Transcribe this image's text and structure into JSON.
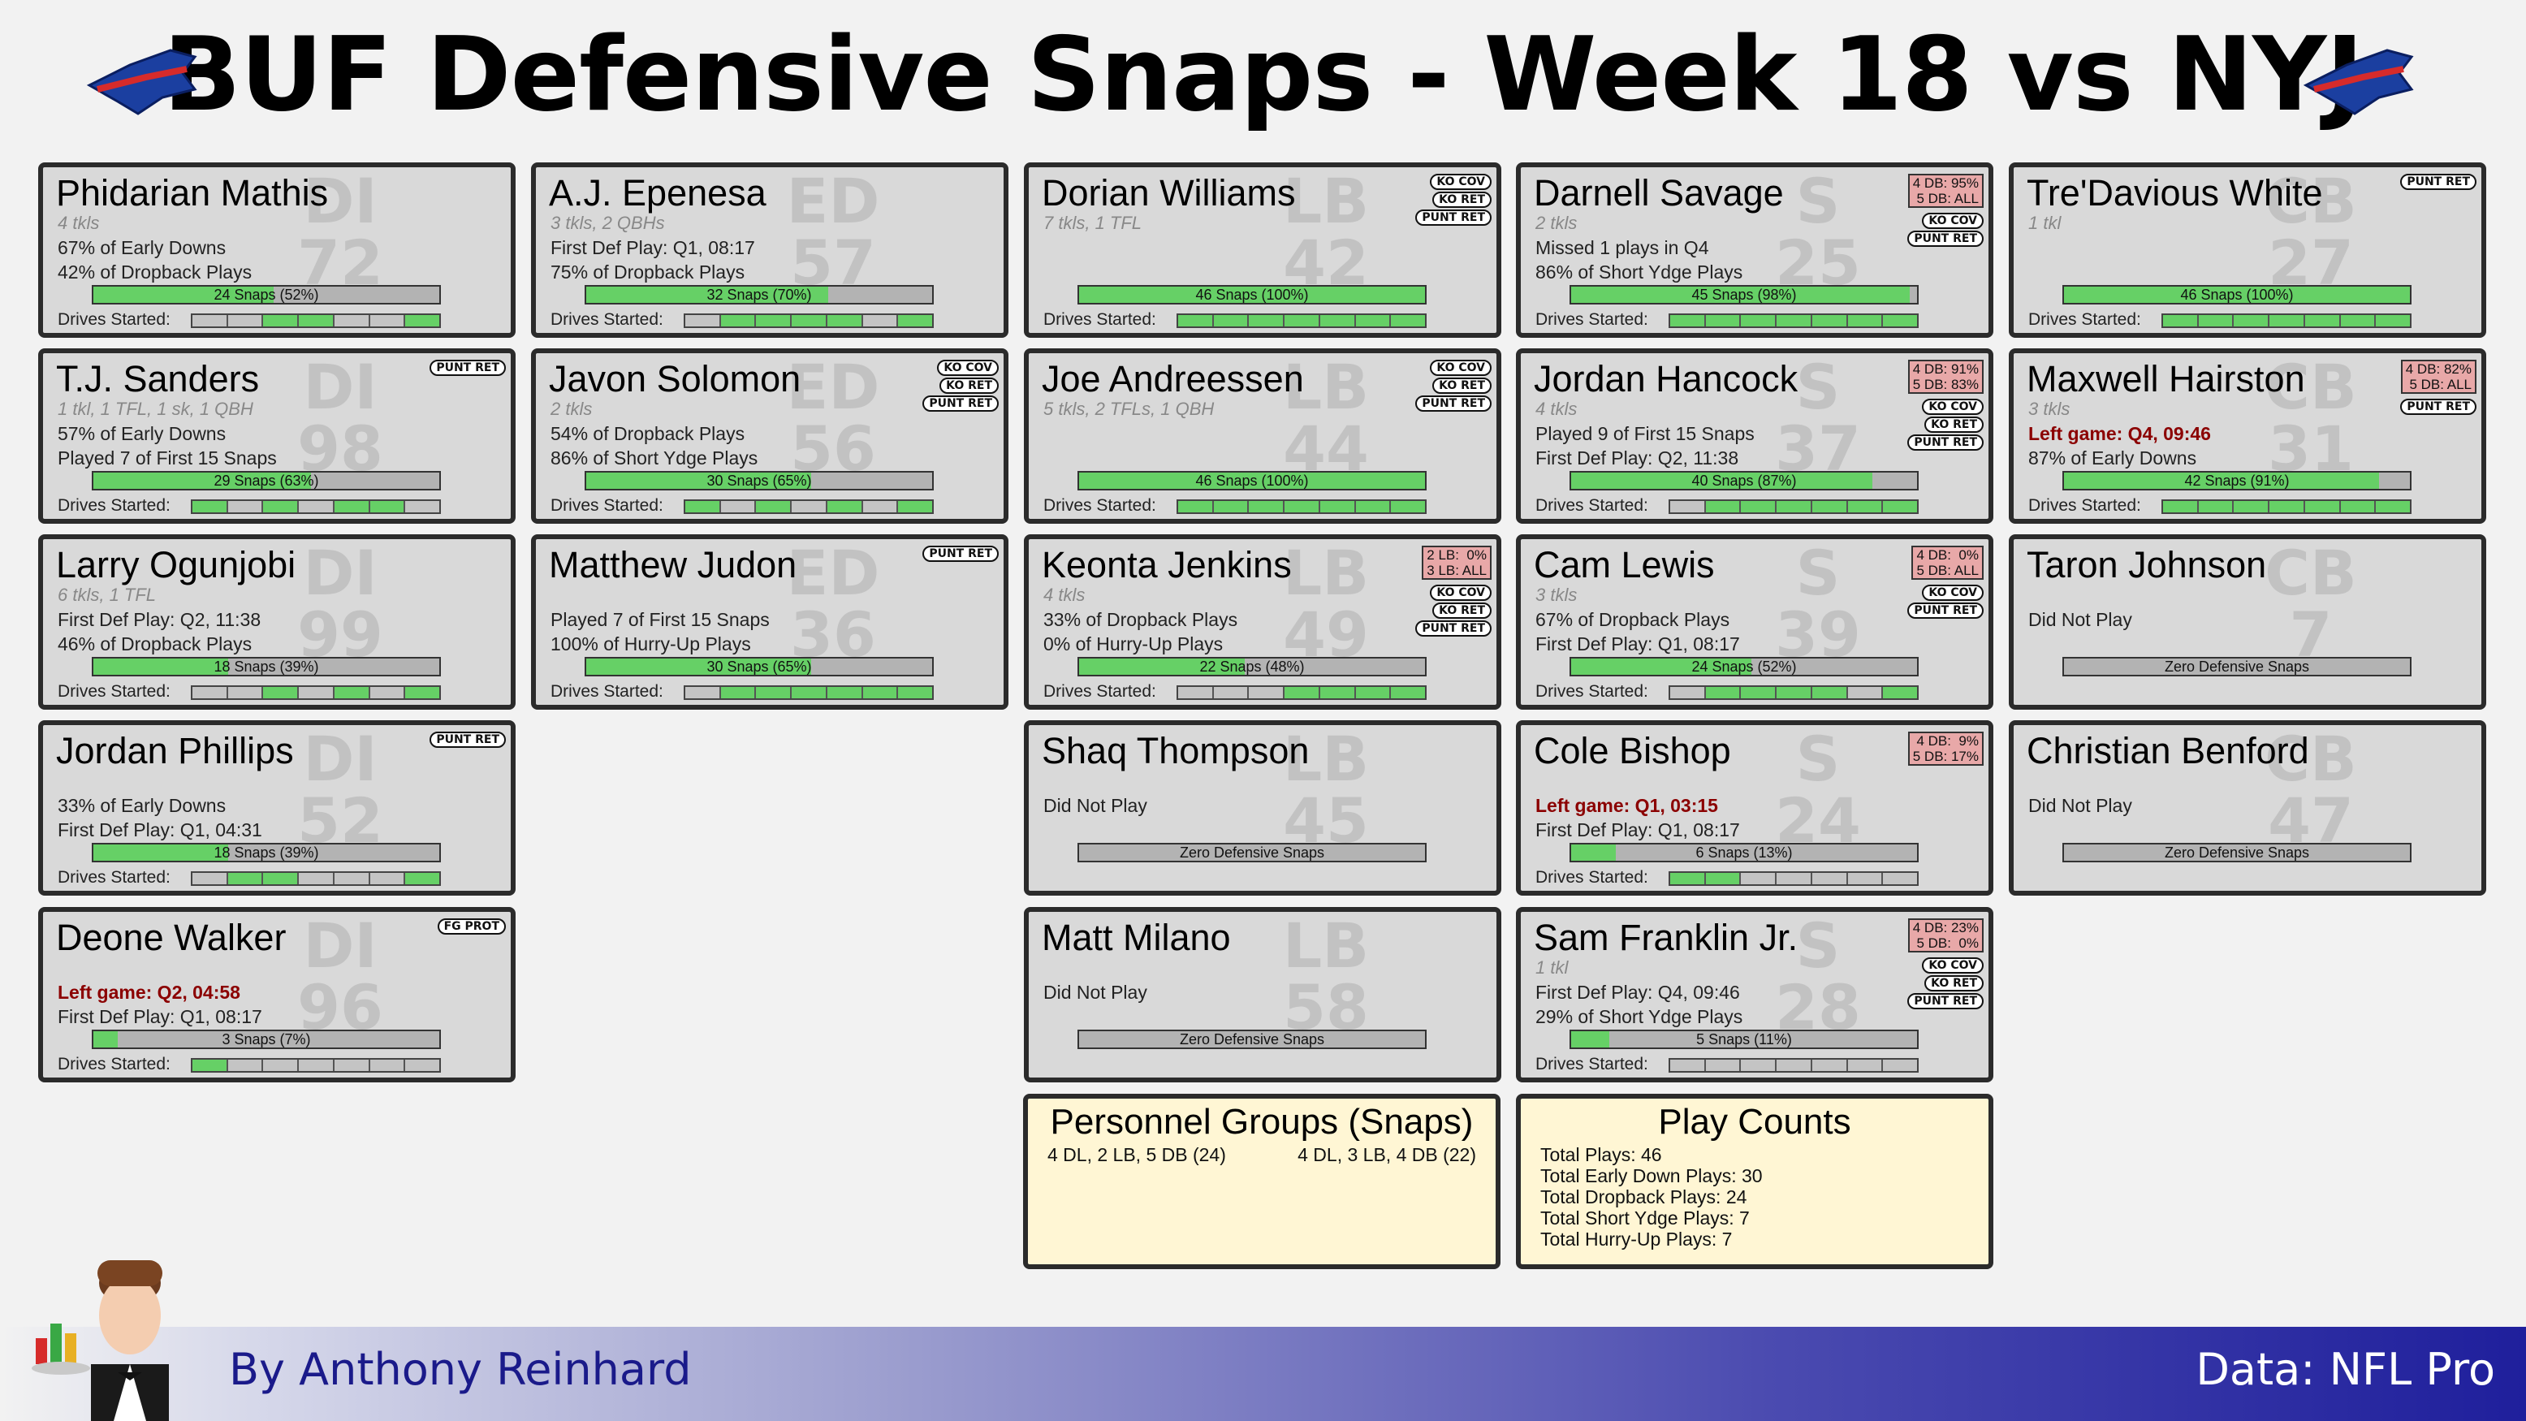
{
  "header": {
    "title": "BUF Defensive Snaps - Week 18 vs NYJ"
  },
  "colors": {
    "snap_fill": "#66d066",
    "card_bg": "#d9d9d9",
    "summary_bg": "#fff6d4",
    "left_game_red": "#8b0000",
    "personnel_box": "#e8a8a8"
  },
  "players": [
    {
      "name": "Phidarian Mathis",
      "pos": "DI",
      "num": "72",
      "stats": "4 tkls",
      "lines": [
        "67% of Early Downs",
        "42% of Dropback Plays"
      ],
      "snap_label": "24 Snaps (52%)",
      "snap_pct": 52,
      "drives": [
        0,
        0,
        1,
        1,
        0,
        0,
        1
      ],
      "badges": [],
      "personnel": ""
    },
    {
      "name": "A.J. Epenesa",
      "pos": "ED",
      "num": "57",
      "stats": "3 tkls, 2 QBHs",
      "lines": [
        "First Def Play: Q1, 08:17",
        "75% of Dropback Plays"
      ],
      "snap_label": "32 Snaps (70%)",
      "snap_pct": 70,
      "drives": [
        0,
        1,
        1,
        1,
        1,
        0,
        1
      ],
      "badges": [],
      "personnel": ""
    },
    {
      "name": "Dorian Williams",
      "pos": "LB",
      "num": "42",
      "stats": "7 tkls, 1 TFL",
      "lines": [],
      "snap_label": "46 Snaps (100%)",
      "snap_pct": 100,
      "drives": [
        1,
        1,
        1,
        1,
        1,
        1,
        1
      ],
      "badges": [
        "KO COV",
        "KO RET",
        "PUNT RET"
      ],
      "personnel": ""
    },
    {
      "name": "Darnell Savage",
      "pos": "S",
      "num": "25",
      "stats": "2 tkls",
      "lines": [
        "Missed 1 plays in Q4",
        "86% of Short Ydge Plays"
      ],
      "snap_label": "45 Snaps (98%)",
      "snap_pct": 98,
      "drives": [
        1,
        1,
        1,
        1,
        1,
        1,
        1
      ],
      "badges": [
        "KO COV",
        "PUNT RET"
      ],
      "personnel": "4 DB: 95%\n5 DB: ALL"
    },
    {
      "name": "Tre'Davious White",
      "pos": "CB",
      "num": "27",
      "stats": "1 tkl",
      "lines": [],
      "snap_label": "46 Snaps (100%)",
      "snap_pct": 100,
      "drives": [
        1,
        1,
        1,
        1,
        1,
        1,
        1
      ],
      "badges": [
        "PUNT RET"
      ],
      "personnel": ""
    },
    {
      "name": "T.J. Sanders",
      "pos": "DI",
      "num": "98",
      "stats": "1 tkl, 1 TFL, 1 sk, 1 QBH",
      "lines": [
        "57% of Early Downs",
        "Played 7 of First 15 Snaps"
      ],
      "snap_label": "29 Snaps (63%)",
      "snap_pct": 63,
      "drives": [
        1,
        0,
        1,
        0,
        1,
        1,
        0
      ],
      "badges": [
        "PUNT RET"
      ],
      "personnel": ""
    },
    {
      "name": "Javon Solomon",
      "pos": "ED",
      "num": "56",
      "stats": "2 tkls",
      "lines": [
        "54% of Dropback Plays",
        "86% of Short Ydge Plays"
      ],
      "snap_label": "30 Snaps (65%)",
      "snap_pct": 65,
      "drives": [
        1,
        0,
        1,
        0,
        1,
        0,
        1
      ],
      "badges": [
        "KO COV",
        "KO RET",
        "PUNT RET"
      ],
      "personnel": ""
    },
    {
      "name": "Joe Andreessen",
      "pos": "LB",
      "num": "44",
      "stats": "5 tkls, 2 TFLs, 1 QBH",
      "lines": [],
      "snap_label": "46 Snaps (100%)",
      "snap_pct": 100,
      "drives": [
        1,
        1,
        1,
        1,
        1,
        1,
        1
      ],
      "badges": [
        "KO COV",
        "KO RET",
        "PUNT RET"
      ],
      "personnel": ""
    },
    {
      "name": "Jordan Hancock",
      "pos": "S",
      "num": "37",
      "stats": "4 tkls",
      "lines": [
        "Played 9 of First 15 Snaps",
        "First Def Play: Q2, 11:38"
      ],
      "snap_label": "40 Snaps (87%)",
      "snap_pct": 87,
      "drives": [
        0,
        1,
        1,
        1,
        1,
        1,
        1
      ],
      "badges": [
        "KO COV",
        "KO RET",
        "PUNT RET"
      ],
      "personnel": "4 DB: 91%\n5 DB: 83%"
    },
    {
      "name": "Maxwell Hairston",
      "pos": "CB",
      "num": "31",
      "stats": "3 tkls",
      "lines": [
        "Left game: Q4, 09:46",
        "87% of Early Downs"
      ],
      "red_line": 0,
      "snap_label": "42 Snaps (91%)",
      "snap_pct": 91,
      "drives": [
        1,
        1,
        1,
        1,
        1,
        1,
        1
      ],
      "badges": [
        "PUNT RET"
      ],
      "personnel": "4 DB: 82%\n5 DB: ALL"
    },
    {
      "name": "Larry Ogunjobi",
      "pos": "DI",
      "num": "99",
      "stats": "6 tkls, 1 TFL",
      "lines": [
        "First Def Play: Q2, 11:38",
        "46% of Dropback Plays"
      ],
      "snap_label": "18 Snaps (39%)",
      "snap_pct": 39,
      "drives": [
        0,
        0,
        1,
        0,
        1,
        0,
        1
      ],
      "badges": [],
      "personnel": ""
    },
    {
      "name": "Matthew Judon",
      "pos": "ED",
      "num": "36",
      "stats": "",
      "lines": [
        "Played 7 of First 15 Snaps",
        "100% of Hurry-Up Plays"
      ],
      "snap_label": "30 Snaps (65%)",
      "snap_pct": 65,
      "drives": [
        0,
        1,
        1,
        1,
        1,
        1,
        1
      ],
      "badges": [
        "PUNT RET"
      ],
      "personnel": ""
    },
    {
      "name": "Keonta Jenkins",
      "pos": "LB",
      "num": "49",
      "stats": "4 tkls",
      "lines": [
        "33% of Dropback Plays",
        "0% of Hurry-Up Plays"
      ],
      "snap_label": "22 Snaps (48%)",
      "snap_pct": 48,
      "drives": [
        0,
        0,
        0,
        1,
        1,
        1,
        1
      ],
      "badges": [
        "KO COV",
        "KO RET",
        "PUNT RET"
      ],
      "personnel": "2 LB:  0%\n3 LB: ALL"
    },
    {
      "name": "Cam Lewis",
      "pos": "S",
      "num": "39",
      "stats": "3 tkls",
      "lines": [
        "67% of Dropback Plays",
        "First Def Play: Q1, 08:17"
      ],
      "snap_label": "24 Snaps (52%)",
      "snap_pct": 52,
      "drives": [
        0,
        1,
        1,
        1,
        1,
        0,
        1
      ],
      "badges": [
        "KO COV",
        "PUNT RET"
      ],
      "personnel": "4 DB:  0%\n5 DB: ALL"
    },
    {
      "name": "Taron Johnson",
      "pos": "CB",
      "num": "7",
      "stats": "",
      "lines": [
        "Did Not Play"
      ],
      "snap_label": "Zero Defensive Snaps",
      "snap_pct": 0,
      "drives": null,
      "badges": [],
      "personnel": ""
    },
    {
      "name": "Jordan Phillips",
      "pos": "DI",
      "num": "52",
      "stats": "",
      "lines": [
        "33% of Early Downs",
        "First Def Play: Q1, 04:31"
      ],
      "snap_label": "18 Snaps (39%)",
      "snap_pct": 39,
      "drives": [
        0,
        1,
        1,
        0,
        0,
        0,
        1
      ],
      "badges": [
        "PUNT RET"
      ],
      "personnel": ""
    },
    {
      "name": "Shaq Thompson",
      "pos": "LB",
      "num": "45",
      "stats": "",
      "lines": [
        "Did Not Play"
      ],
      "snap_label": "Zero Defensive Snaps",
      "snap_pct": 0,
      "drives": null,
      "badges": [],
      "personnel": ""
    },
    {
      "name": "Cole Bishop",
      "pos": "S",
      "num": "24",
      "stats": "",
      "lines": [
        "Left game: Q1, 03:15",
        "First Def Play: Q1, 08:17"
      ],
      "red_line": 0,
      "snap_label": "6 Snaps (13%)",
      "snap_pct": 13,
      "drives": [
        1,
        1,
        0,
        0,
        0,
        0,
        0
      ],
      "badges": [],
      "personnel": "4 DB:  9%\n5 DB: 17%"
    },
    {
      "name": "Christian Benford",
      "pos": "CB",
      "num": "47",
      "stats": "",
      "lines": [
        "Did Not Play"
      ],
      "snap_label": "Zero Defensive Snaps",
      "snap_pct": 0,
      "drives": null,
      "badges": [],
      "personnel": ""
    },
    {
      "name": "Deone Walker",
      "pos": "DI",
      "num": "96",
      "stats": "",
      "lines": [
        "Left game: Q2, 04:58",
        "First Def Play: Q1, 08:17"
      ],
      "red_line": 0,
      "snap_label": "3 Snaps (7%)",
      "snap_pct": 7,
      "drives": [
        1,
        0,
        0,
        0,
        0,
        0,
        0
      ],
      "badges": [
        "FG PROT"
      ],
      "personnel": ""
    },
    {
      "name": "Matt Milano",
      "pos": "LB",
      "num": "58",
      "stats": "",
      "lines": [
        "Did Not Play"
      ],
      "snap_label": "Zero Defensive Snaps",
      "snap_pct": 0,
      "drives": null,
      "badges": [],
      "personnel": ""
    },
    {
      "name": "Sam Franklin Jr.",
      "pos": "S",
      "num": "28",
      "stats": "1 tkl",
      "lines": [
        "First Def Play: Q4, 09:46",
        "29% of Short Ydge Plays"
      ],
      "snap_label": "5 Snaps (11%)",
      "snap_pct": 11,
      "drives": [
        0,
        0,
        0,
        0,
        0,
        0,
        0
      ],
      "badges": [
        "KO COV",
        "KO RET",
        "PUNT RET"
      ],
      "personnel": "4 DB: 23%\n5 DB:  0%"
    }
  ],
  "drives_label": "Drives Started:",
  "personnel_groups": {
    "title": "Personnel Groups (Snaps)",
    "left": "4 DL, 2 LB, 5 DB (24)",
    "right": "4 DL, 3 LB, 4 DB (22)"
  },
  "play_counts": {
    "title": "Play Counts",
    "lines": [
      "Total Plays: 46",
      "Total Early Down Plays: 30",
      "Total Dropback Plays: 24",
      "Total Short Ydge Plays: 7",
      "Total Hurry-Up Plays: 7"
    ]
  },
  "footer": {
    "byline": "By Anthony Reinhard",
    "data_source": "Data: NFL Pro"
  }
}
